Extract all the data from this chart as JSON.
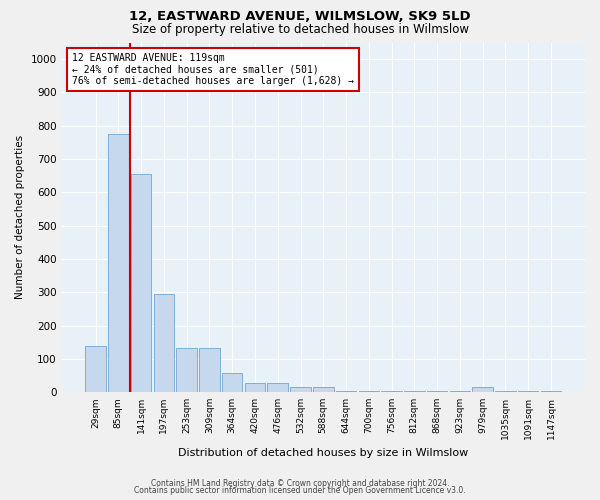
{
  "title": "12, EASTWARD AVENUE, WILMSLOW, SK9 5LD",
  "subtitle": "Size of property relative to detached houses in Wilmslow",
  "xlabel": "Distribution of detached houses by size in Wilmslow",
  "ylabel": "Number of detached properties",
  "bar_color": "#c5d8ed",
  "bar_edge_color": "#7fafd4",
  "background_color": "#e8f0f8",
  "grid_color": "#ffffff",
  "categories": [
    "29sqm",
    "85sqm",
    "141sqm",
    "197sqm",
    "253sqm",
    "309sqm",
    "364sqm",
    "420sqm",
    "476sqm",
    "532sqm",
    "588sqm",
    "644sqm",
    "700sqm",
    "756sqm",
    "812sqm",
    "868sqm",
    "923sqm",
    "979sqm",
    "1035sqm",
    "1091sqm",
    "1147sqm"
  ],
  "values": [
    140,
    775,
    655,
    295,
    133,
    133,
    58,
    28,
    28,
    15,
    15,
    5,
    5,
    5,
    5,
    5,
    5,
    15,
    5,
    5,
    5
  ],
  "vline_x": 1.5,
  "annotation_text": "12 EASTWARD AVENUE: 119sqm\n← 24% of detached houses are smaller (501)\n76% of semi-detached houses are larger (1,628) →",
  "annotation_box_color": "#ffffff",
  "annotation_border_color": "#cc0000",
  "vline_color": "#cc0000",
  "ylim": [
    0,
    1050
  ],
  "yticks": [
    0,
    100,
    200,
    300,
    400,
    500,
    600,
    700,
    800,
    900,
    1000
  ],
  "footer_line1": "Contains HM Land Registry data © Crown copyright and database right 2024.",
  "footer_line2": "Contains public sector information licensed under the Open Government Licence v3.0.",
  "fig_width": 6.0,
  "fig_height": 5.0,
  "fig_dpi": 100
}
